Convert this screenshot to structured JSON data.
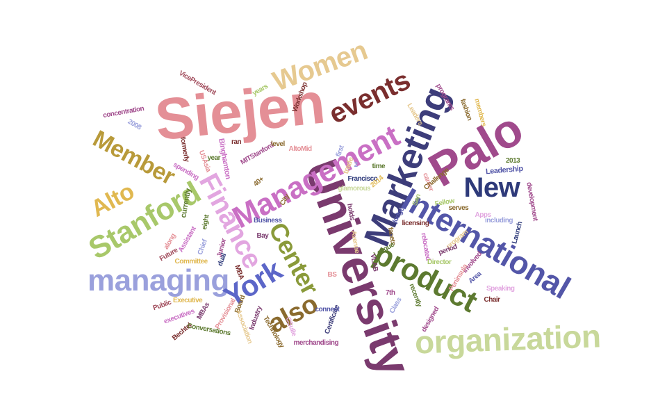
{
  "words": [
    {
      "text": "Siejen",
      "color": "#e48f96"
    },
    {
      "text": "University",
      "color": "#7a3a6e"
    },
    {
      "text": "Palo",
      "color": "#a04a8c"
    },
    {
      "text": "Marketing",
      "color": "#3d3d7a"
    },
    {
      "text": "Management",
      "color": "#c96fc4"
    },
    {
      "text": "International",
      "color": "#5356a8"
    },
    {
      "text": "organization",
      "color": "#c8d89a"
    },
    {
      "text": "product",
      "color": "#5d7a30"
    },
    {
      "text": "managing",
      "color": "#9aa0dc"
    },
    {
      "text": "Stanford",
      "color": "#a8c86a"
    },
    {
      "text": "Finance",
      "color": "#e2a6e0"
    },
    {
      "text": "Center",
      "color": "#8a9a3a"
    },
    {
      "text": "York",
      "color": "#5c66c8"
    },
    {
      "text": "also",
      "color": "#8a6a2e"
    },
    {
      "text": "events",
      "color": "#7a2e2e"
    },
    {
      "text": "Women",
      "color": "#e6c990"
    },
    {
      "text": "Member",
      "color": "#b89a3a"
    },
    {
      "text": "Alto",
      "color": "#e0b850"
    },
    {
      "text": "New",
      "color": "#2e3a7a"
    },
    {
      "text": "concentration",
      "color": "#a04a8c"
    },
    {
      "text": "VicePresident",
      "color": "#a04a5a"
    },
    {
      "text": "2008",
      "color": "#9aa0dc"
    },
    {
      "text": "formerly",
      "color": "#7a2e2e"
    },
    {
      "text": "spending",
      "color": "#c96fc4"
    },
    {
      "text": "USAsia",
      "color": "#e48f96"
    },
    {
      "text": "year",
      "color": "#5d7a30"
    },
    {
      "text": "Binghamton",
      "color": "#c96fc4"
    },
    {
      "text": "ran",
      "color": "#7a2e2e"
    },
    {
      "text": "MITStanford",
      "color": "#a04a8c"
    },
    {
      "text": "level",
      "color": "#8a6a2e"
    },
    {
      "text": "AltoMid",
      "color": "#e48f96"
    },
    {
      "text": "first",
      "color": "#9aa0dc"
    },
    {
      "text": "trade",
      "color": "#e6c990"
    },
    {
      "text": "Workshop",
      "color": "#7a2e2e"
    },
    {
      "text": "years",
      "color": "#a8c86a"
    },
    {
      "text": "City",
      "color": "#8a6a2e"
    },
    {
      "text": "programs",
      "color": "#a04a8c"
    },
    {
      "text": "fashion",
      "color": "#8a6a2e"
    },
    {
      "text": "members",
      "color": "#e0b850"
    },
    {
      "text": "Leaders",
      "color": "#e6c990"
    },
    {
      "text": "career",
      "color": "#e48f96"
    },
    {
      "text": "Fellow",
      "color": "#a8c86a"
    },
    {
      "text": "Challenge",
      "color": "#8a6a2e"
    },
    {
      "text": "Leadership",
      "color": "#5356a8"
    },
    {
      "text": "2013",
      "color": "#5d7a30"
    },
    {
      "text": "San",
      "color": "#a8c86a"
    },
    {
      "text": "Francisco",
      "color": "#2e3a7a"
    },
    {
      "text": "time",
      "color": "#5d7a30"
    },
    {
      "text": "2014",
      "color": "#e0b850"
    },
    {
      "text": "glamorous",
      "color": "#c8d89a"
    },
    {
      "text": "holds",
      "color": "#7a3a6e"
    },
    {
      "text": "serves",
      "color": "#8a6a2e"
    },
    {
      "text": "Apps",
      "color": "#e2a6e0"
    },
    {
      "text": "including",
      "color": "#9aa0dc"
    },
    {
      "text": "development",
      "color": "#a04a8c"
    },
    {
      "text": "Launch",
      "color": "#2e3a7a"
    },
    {
      "text": "judge",
      "color": "#5356a8"
    },
    {
      "text": "licensing",
      "color": "#7a2e2e"
    },
    {
      "text": "facets",
      "color": "#8a6a2e"
    },
    {
      "text": "League",
      "color": "#5d7a30"
    },
    {
      "text": "relocated",
      "color": "#c96fc4"
    },
    {
      "text": "program",
      "color": "#e6c990"
    },
    {
      "text": "period",
      "color": "#7a3a6e"
    },
    {
      "text": "involved",
      "color": "#a04a8c"
    },
    {
      "text": "Area",
      "color": "#5356a8"
    },
    {
      "text": "Director",
      "color": "#a8c86a"
    },
    {
      "text": "Peninsula",
      "color": "#e48f96"
    },
    {
      "text": "Speaking",
      "color": "#e2a6e0"
    },
    {
      "text": "Chair",
      "color": "#7a2e2e"
    },
    {
      "text": "40+",
      "color": "#8a6a2e"
    },
    {
      "text": "Business",
      "color": "#5356a8"
    },
    {
      "text": "Bay",
      "color": "#7a3a6e"
    },
    {
      "text": "eight",
      "color": "#5d7a30"
    },
    {
      "text": "currently",
      "color": "#5d7a30"
    },
    {
      "text": "along",
      "color": "#e48f96"
    },
    {
      "text": "Assistant",
      "color": "#c96fc4"
    },
    {
      "text": "Chief",
      "color": "#9aa0dc"
    },
    {
      "text": "Junior",
      "color": "#a04a8c"
    },
    {
      "text": "Future",
      "color": "#a04a5a"
    },
    {
      "text": "Committee",
      "color": "#e0b850"
    },
    {
      "text": "dual",
      "color": "#2e3a7a"
    },
    {
      "text": "MBA",
      "color": "#7a2e2e"
    },
    {
      "text": "Executive",
      "color": "#e0b850"
    },
    {
      "text": "Public",
      "color": "#a04a5a"
    },
    {
      "text": "executives",
      "color": "#c96fc4"
    },
    {
      "text": "Bechtel",
      "color": "#7a2e2e"
    },
    {
      "text": "MBAs",
      "color": "#7a3a6e"
    },
    {
      "text": "Conversations",
      "color": "#5d7a30"
    },
    {
      "text": "Provisional",
      "color": "#e48f96"
    },
    {
      "text": "Board",
      "color": "#8a6a2e"
    },
    {
      "text": "Association",
      "color": "#e6c990"
    },
    {
      "text": "Industry",
      "color": "#7a3a6e"
    },
    {
      "text": "Technology",
      "color": "#8a6a2e"
    },
    {
      "text": "CSulle",
      "color": "#e2a6e0"
    },
    {
      "text": "merchandising",
      "color": "#a04a8c"
    },
    {
      "text": "Certificate",
      "color": "#3d3d7a"
    },
    {
      "text": "connect",
      "color": "#5356a8"
    },
    {
      "text": "BS",
      "color": "#e48f96"
    },
    {
      "text": "Avenue",
      "color": "#e6c990"
    },
    {
      "text": "VLAB",
      "color": "#7a3a6e"
    },
    {
      "text": "7th",
      "color": "#a04a8c"
    },
    {
      "text": "Class",
      "color": "#9aa0dc"
    },
    {
      "text": "recently",
      "color": "#5d7a30"
    },
    {
      "text": "designed",
      "color": "#a04a8c"
    },
    {
      "text": "2",
      "color": "#9aa0dc"
    }
  ]
}
